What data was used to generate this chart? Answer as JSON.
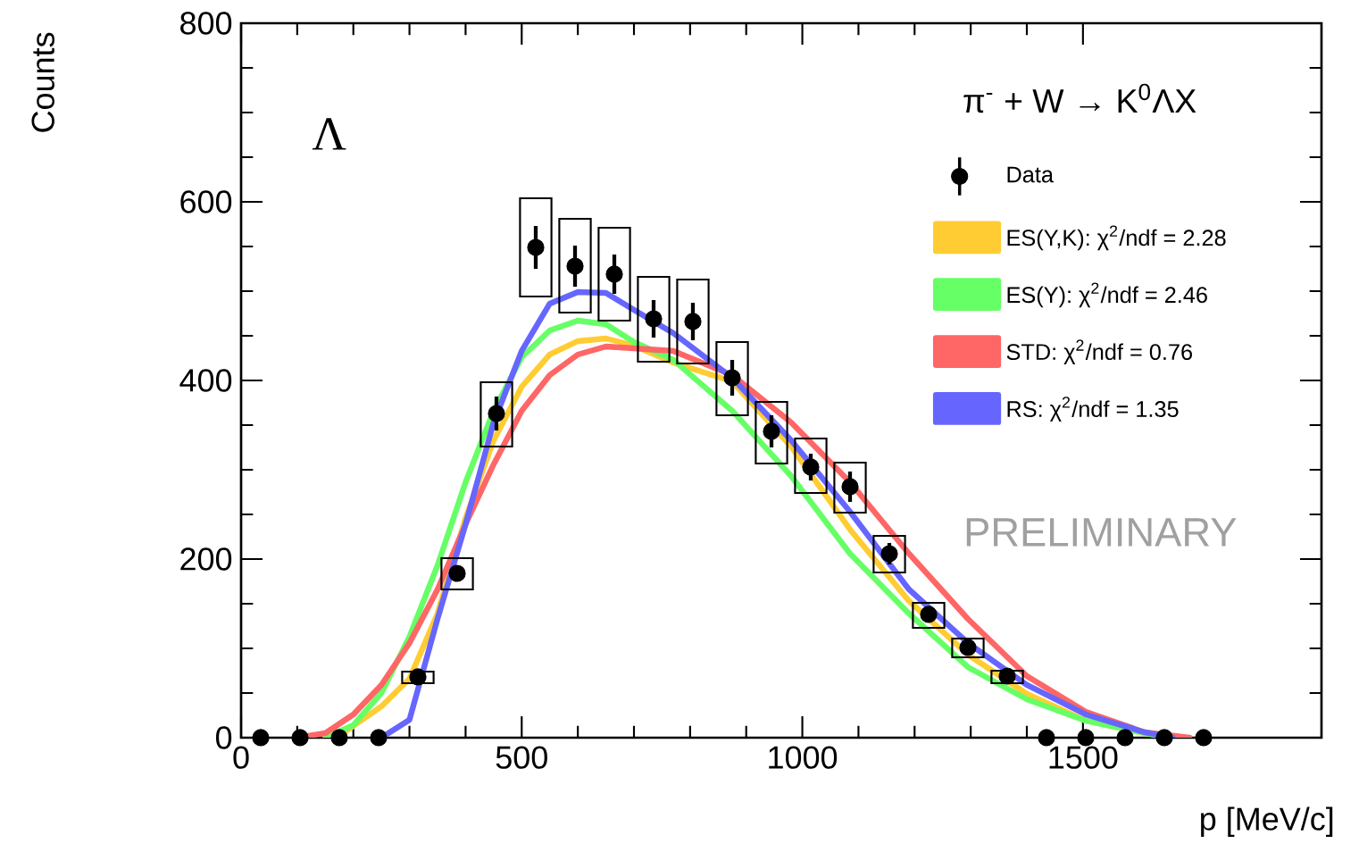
{
  "chart_data": {
    "type": "line",
    "xlabel": "p [MeV/c]",
    "ylabel": "Counts",
    "xlim": [
      0,
      1925
    ],
    "ylim": [
      0,
      800
    ],
    "xticks": [
      0,
      500,
      1000,
      1500
    ],
    "yticks": [
      0,
      200,
      400,
      600,
      800
    ],
    "legend": "top right",
    "annotations": [
      "π$^{-}$ + W  → K$^{0}$ΛX",
      "Λ",
      "PRELIMINARY"
    ],
    "series": [
      {
        "type": "scatter",
        "marker": "circle",
        "name": "Data",
        "color": "#000000",
        "x": [
          35,
          105,
          175,
          245,
          315,
          385,
          455,
          525,
          595,
          665,
          735,
          805,
          875,
          945,
          1015,
          1085,
          1155,
          1225,
          1295,
          1365,
          1435,
          1505,
          1575,
          1645,
          1715
        ],
        "values": [
          0,
          0,
          0,
          0,
          68,
          184,
          363,
          549,
          528,
          519,
          469,
          466,
          403,
          343,
          303,
          281,
          206,
          138,
          101,
          69,
          0,
          0,
          0,
          0,
          0
        ],
        "errors": [
          null,
          null,
          null,
          null,
          5,
          8,
          19,
          24,
          23,
          22,
          21,
          21,
          20,
          18,
          15,
          17,
          12,
          8,
          6,
          5,
          null,
          null,
          null,
          null,
          null
        ]
      },
      {
        "name": "ES(Y,K): χ$^{2}$/ndf = 2.28",
        "color": "#ffcc33",
        "x": [
          170,
          200,
          250,
          300,
          350,
          400,
          450,
          500,
          550,
          600,
          650,
          700,
          770,
          875,
          980,
          1085,
          1190,
          1295,
          1400,
          1505,
          1610,
          1660
        ],
        "values": [
          0,
          13,
          35,
          66,
          139,
          246,
          333,
          393,
          429,
          444,
          447,
          439,
          420,
          399,
          326,
          233,
          153,
          93,
          49,
          19,
          5,
          0
        ]
      },
      {
        "name": "ES(Y): χ$^{2}$/ndf = 2.46",
        "color": "#66ff66",
        "x": [
          150,
          200,
          250,
          300,
          350,
          400,
          450,
          500,
          550,
          600,
          650,
          700,
          770,
          875,
          980,
          1085,
          1190,
          1295,
          1400,
          1505,
          1610,
          1660
        ],
        "values": [
          0,
          14,
          50,
          113,
          193,
          286,
          366,
          426,
          456,
          467,
          463,
          443,
          423,
          366,
          293,
          206,
          139,
          79,
          43,
          19,
          5,
          0
        ]
      },
      {
        "name": "STD: χ$^{2}$/ndf = 0.76",
        "color": "#ff6666",
        "x": [
          100,
          150,
          200,
          250,
          300,
          350,
          400,
          450,
          500,
          550,
          600,
          650,
          700,
          770,
          875,
          980,
          1085,
          1190,
          1295,
          1400,
          1505,
          1610,
          1690
        ],
        "values": [
          0,
          5,
          26,
          59,
          106,
          166,
          239,
          306,
          366,
          406,
          429,
          438,
          436,
          433,
          406,
          353,
          286,
          206,
          133,
          69,
          29,
          6,
          0
        ]
      },
      {
        "name": "RS: χ$^{2}$/ndf = 1.35",
        "color": "#6666ff",
        "x": [
          250,
          300,
          350,
          400,
          450,
          500,
          550,
          600,
          650,
          700,
          770,
          875,
          980,
          1085,
          1190,
          1295,
          1400,
          1505,
          1610,
          1660
        ],
        "values": [
          0,
          20,
          133,
          239,
          353,
          433,
          486,
          499,
          498,
          479,
          453,
          403,
          333,
          253,
          166,
          106,
          59,
          26,
          6,
          0
        ]
      },
      {
        "type": "bar",
        "color": "#000000",
        "x": [
          315,
          385,
          455,
          525,
          595,
          665,
          735,
          805,
          875,
          945,
          1015,
          1085,
          1155,
          1225,
          1295,
          1365
        ],
        "base": [
          61,
          166,
          326,
          494,
          476,
          467,
          421,
          419,
          361,
          307,
          274,
          252,
          185,
          123,
          90,
          61
        ],
        "values": [
          13,
          35,
          72,
          110,
          105,
          104,
          95,
          94,
          82,
          69,
          61,
          56,
          41,
          28,
          21,
          14
        ]
      }
    ]
  }
}
